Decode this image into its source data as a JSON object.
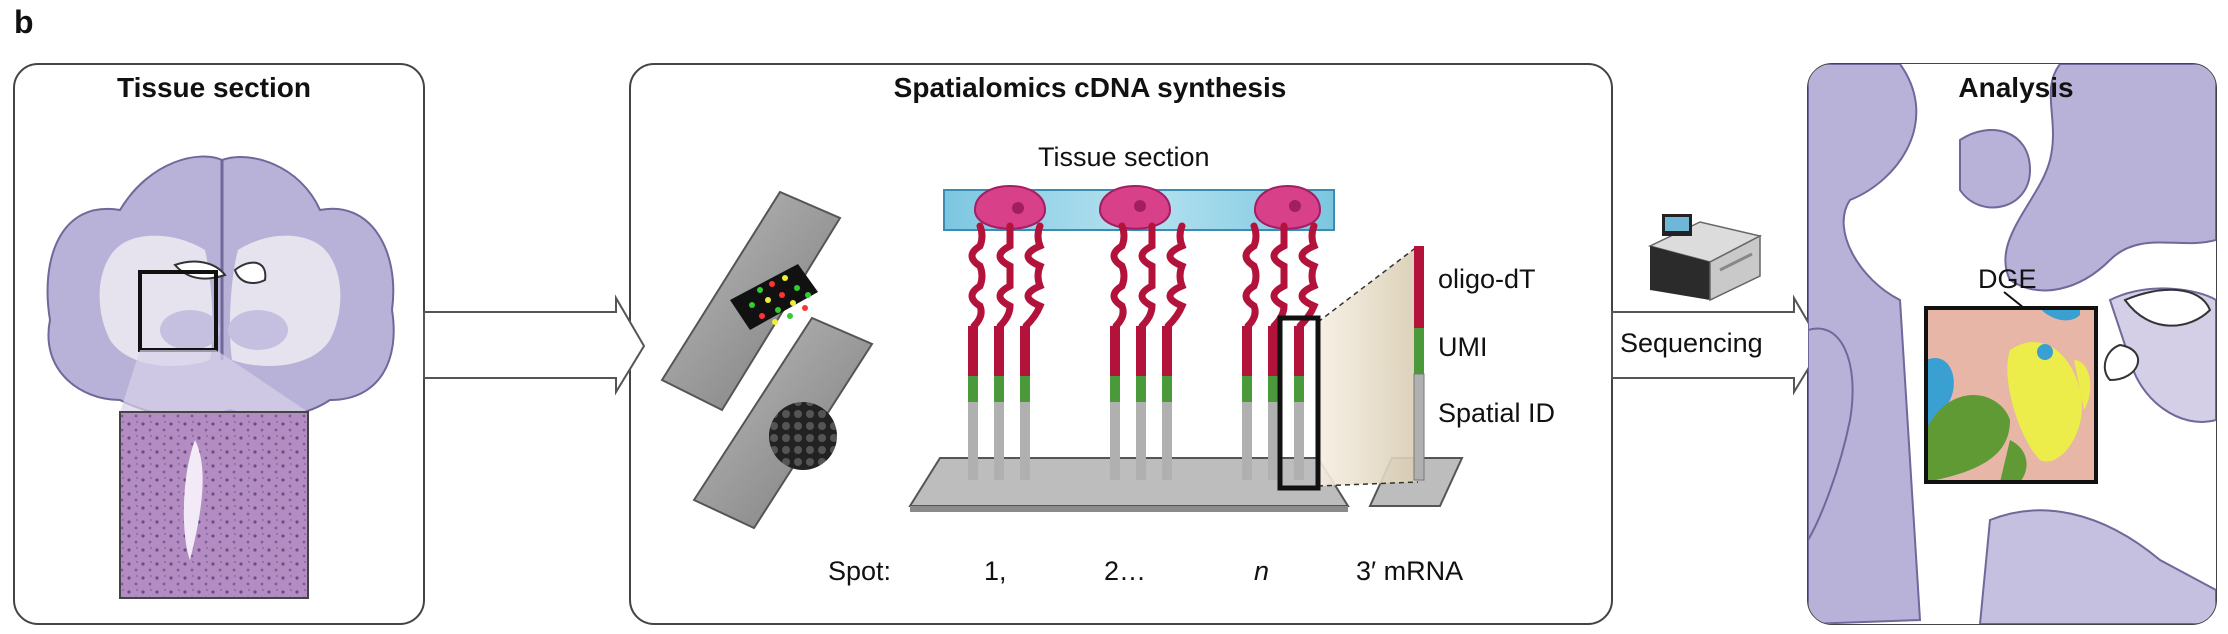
{
  "figure": {
    "panel_letter": "b",
    "panels": {
      "tissue": {
        "title": "Tissue section"
      },
      "synthesis": {
        "title": "Spatialomics cDNA synthesis",
        "tissue_label": "Tissue section",
        "probe_parts": [
          "oligo-dT",
          "UMI",
          "Spatial ID"
        ],
        "spot_label": "Spot:",
        "spots": [
          "1,",
          "2…",
          "n"
        ],
        "mrna_label": "3′ mRNA"
      },
      "analysis": {
        "title": "Analysis",
        "dge_label": "DGE"
      }
    },
    "step_label": "Sequencing"
  },
  "colors": {
    "brain_fill": "#b9b2d8",
    "white_matter": "#e6e3ef",
    "he_stain": "#a77bb5",
    "cell": "#d9408a",
    "tissue_bar": "#8fd0e6",
    "oligo_dt": "#b3123a",
    "umi": "#4a9a3c",
    "spatial_id": "#b0b0b0",
    "slide": "#9a9a9a",
    "dge_bg": "#e7b6a6",
    "dge_yellow": "#ecec4a",
    "dge_green": "#5f9a35",
    "dge_blue": "#3aa0d2"
  }
}
